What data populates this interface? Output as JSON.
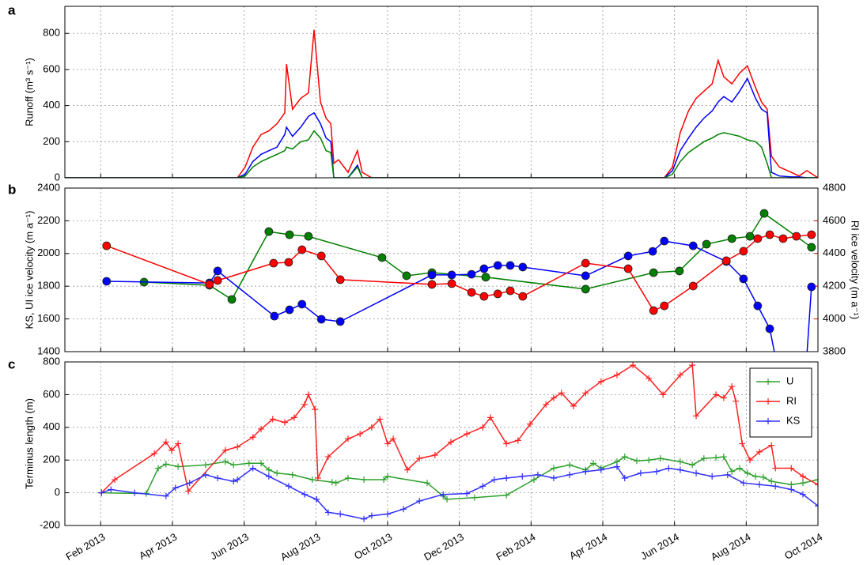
{
  "chart_data": [
    {
      "type": "line",
      "panel_label": "a",
      "ylabel": "Runoff (m³ s⁻¹)",
      "xlim": [
        2013.0,
        2014.75
      ],
      "xticks": [
        2013.0833,
        2013.25,
        2013.4167,
        2013.5833,
        2013.75,
        2013.9167,
        2014.0833,
        2014.25,
        2014.4167,
        2014.5833,
        2014.75
      ],
      "ylim": [
        0,
        950
      ],
      "yticks": [
        0,
        200,
        400,
        600,
        800
      ],
      "grid": true,
      "x": [
        2013.0,
        2013.401,
        2013.419,
        2013.437,
        2013.456,
        2013.474,
        2013.493,
        2013.511,
        2013.515,
        2013.529,
        2013.548,
        2013.566,
        2013.579,
        2013.594,
        2013.607,
        2013.618,
        2013.625,
        2013.636,
        2013.658,
        2013.68,
        2013.691,
        2013.713,
        2014.393,
        2014.412,
        2014.43,
        2014.449,
        2014.467,
        2014.485,
        2014.504,
        2014.518,
        2014.531,
        2014.55,
        2014.568,
        2014.586,
        2014.605,
        2014.619,
        2014.632,
        2014.642,
        2014.66,
        2014.688,
        2014.706,
        2014.724,
        2014.75
      ],
      "series": [
        {
          "color": "#ff0000",
          "values": [
            0,
            0,
            60,
            170,
            240,
            260,
            300,
            360,
            630,
            380,
            440,
            470,
            820,
            420,
            330,
            300,
            80,
            100,
            30,
            150,
            30,
            0,
            0,
            60,
            250,
            370,
            440,
            480,
            520,
            650,
            560,
            520,
            580,
            620,
            500,
            420,
            380,
            120,
            60,
            30,
            10,
            40,
            0
          ]
        },
        {
          "color": "#0000ff",
          "values": [
            0,
            0,
            20,
            90,
            130,
            150,
            170,
            240,
            280,
            230,
            280,
            340,
            360,
            300,
            220,
            200,
            0,
            0,
            0,
            70,
            0,
            0,
            0,
            40,
            150,
            220,
            280,
            330,
            370,
            420,
            450,
            420,
            480,
            550,
            440,
            380,
            360,
            30,
            10,
            5,
            5,
            0,
            0
          ]
        },
        {
          "color": "#008000",
          "values": [
            0,
            0,
            10,
            60,
            90,
            110,
            130,
            150,
            170,
            160,
            200,
            210,
            260,
            220,
            150,
            140,
            0,
            0,
            0,
            60,
            0,
            0,
            0,
            20,
            90,
            140,
            170,
            200,
            220,
            240,
            250,
            240,
            230,
            210,
            200,
            170,
            80,
            0,
            0,
            0,
            0,
            0,
            0
          ]
        }
      ]
    },
    {
      "type": "line",
      "panel_label": "b",
      "ylabel": "KS, UI ice velocity (m a⁻¹)",
      "y2label": "RI ice velocity (m a⁻¹)",
      "y2color": "#ff0000",
      "xlim": [
        2013.0,
        2014.75
      ],
      "xticks": [
        2013.0833,
        2013.25,
        2013.4167,
        2013.5833,
        2013.75,
        2013.9167,
        2014.0833,
        2014.25,
        2014.4167,
        2014.5833,
        2014.75
      ],
      "ylim": [
        1400,
        2400
      ],
      "yticks": [
        1400,
        1600,
        1800,
        2000,
        2200,
        2400
      ],
      "y2lim": [
        3800,
        4800
      ],
      "y2ticks": [
        3800,
        4000,
        4200,
        4400,
        4600,
        4800
      ],
      "grid": true,
      "marker": "o",
      "series": [
        {
          "color": "#008000",
          "x": [
            2013.184,
            2013.336,
            2013.388,
            2013.474,
            2013.522,
            2013.566,
            2013.737,
            2013.794,
            2013.853,
            2013.978,
            2014.21,
            2014.368,
            2014.428,
            2014.491,
            2014.55,
            2014.592,
            2014.625,
            2014.735
          ],
          "values": [
            1825,
            1806,
            1719,
            2134,
            2115,
            2105,
            1975,
            1864,
            1883,
            1855,
            1782,
            1883,
            1893,
            2057,
            2091,
            2105,
            2245,
            2038
          ]
        },
        {
          "color": "#0000ff",
          "x": [
            2013.097,
            2013.336,
            2013.355,
            2013.487,
            2013.522,
            2013.551,
            2013.596,
            2013.64,
            2013.853,
            2013.899,
            2013.945,
            2013.974,
            2014.006,
            2014.035,
            2014.064,
            2014.21,
            2014.309,
            2014.366,
            2014.393,
            2014.46,
            2014.537,
            2014.577,
            2014.61,
            2014.638,
            2014.66,
            2014.721,
            2014.735
          ],
          "values": [
            1830,
            1820,
            1893,
            1617,
            1656,
            1690,
            1598,
            1584,
            1869,
            1869,
            1873,
            1907,
            1927,
            1927,
            1917,
            1864,
            1985,
            2013,
            2076,
            2047,
            1951,
            1845,
            1680,
            1540,
            1250,
            1250,
            1796
          ]
        },
        {
          "color": "#ff0000",
          "axis": "y2",
          "x": [
            2013.097,
            2013.336,
            2013.355,
            2013.485,
            2013.52,
            2013.551,
            2013.596,
            2013.64,
            2013.853,
            2013.899,
            2013.945,
            2013.974,
            2014.006,
            2014.035,
            2014.064,
            2014.21,
            2014.309,
            2014.368,
            2014.393,
            2014.46,
            2014.537,
            2014.577,
            2014.61,
            2014.638,
            2014.669,
            2014.7,
            2014.735
          ],
          "values": [
            4447,
            4211,
            4235,
            4341,
            4346,
            4423,
            4385,
            4240,
            4211,
            4216,
            4162,
            4138,
            4153,
            4172,
            4138,
            4341,
            4307,
            4051,
            4080,
            4201,
            4356,
            4414,
            4491,
            4515,
            4491,
            4505,
            4515
          ]
        }
      ]
    },
    {
      "type": "line",
      "panel_label": "c",
      "ylabel": "Terminus length (m)",
      "xlim": [
        2013.0,
        2014.75
      ],
      "xticks": [
        {
          "value": 2013.0833,
          "label": "Feb 2013"
        },
        {
          "value": 2013.25,
          "label": "Apr 2013"
        },
        {
          "value": 2013.4167,
          "label": "Jun 2013"
        },
        {
          "value": 2013.5833,
          "label": "Aug 2013"
        },
        {
          "value": 2013.75,
          "label": "Oct 2013"
        },
        {
          "value": 2013.9167,
          "label": "Dec 2013"
        },
        {
          "value": 2014.0833,
          "label": "Feb 2014"
        },
        {
          "value": 2014.25,
          "label": "Apr 2014"
        },
        {
          "value": 2014.4167,
          "label": "Jun 2014"
        },
        {
          "value": 2014.5833,
          "label": "Aug 2014"
        },
        {
          "value": 2014.75,
          "label": "Oct 2014"
        }
      ],
      "ylim": [
        -200,
        800
      ],
      "yticks": [
        -200,
        0,
        200,
        400,
        600,
        800
      ],
      "grid": true,
      "marker": "+",
      "legend": "upper right",
      "series": [
        {
          "name": "U",
          "color": "#2ca02c",
          "x": [
            2013.085,
            2013.189,
            2013.217,
            2013.235,
            2013.263,
            2013.327,
            2013.373,
            2013.392,
            2013.428,
            2013.456,
            2013.474,
            2013.493,
            2013.529,
            2013.575,
            2013.621,
            2013.63,
            2013.658,
            2013.695,
            2013.741,
            2013.75,
            2013.842,
            2013.879,
            2013.888,
            2013.952,
            2014.026,
            2014.09,
            2014.136,
            2014.173,
            2014.21,
            2014.228,
            2014.246,
            2014.283,
            2014.301,
            2014.329,
            2014.357,
            2014.384,
            2014.43,
            2014.458,
            2014.485,
            2014.513,
            2014.531,
            2014.55,
            2014.568,
            2014.586,
            2014.605,
            2014.623,
            2014.642,
            2014.688,
            2014.715,
            2014.75
          ],
          "values": [
            0,
            -5,
            150,
            175,
            160,
            170,
            190,
            170,
            180,
            180,
            140,
            120,
            110,
            80,
            65,
            60,
            90,
            80,
            80,
            100,
            60,
            -20,
            -40,
            -30,
            -15,
            80,
            150,
            170,
            140,
            180,
            150,
            190,
            220,
            195,
            200,
            210,
            190,
            170,
            210,
            215,
            220,
            130,
            150,
            120,
            100,
            95,
            70,
            50,
            60,
            80
          ]
        },
        {
          "name": "RI",
          "color": "#ff2020",
          "x": [
            2013.085,
            2013.116,
            2013.208,
            2013.235,
            2013.248,
            2013.263,
            2013.287,
            2013.373,
            2013.401,
            2013.437,
            2013.456,
            2013.483,
            2013.511,
            2013.533,
            2013.557,
            2013.566,
            2013.581,
            2013.588,
            2013.612,
            2013.658,
            2013.686,
            2013.713,
            2013.732,
            2013.75,
            2013.763,
            2013.796,
            2013.824,
            2013.86,
            2013.897,
            2013.934,
            2013.971,
            2013.989,
            2014.026,
            2014.053,
            2014.081,
            2014.118,
            2014.136,
            2014.154,
            2014.182,
            2014.21,
            2014.246,
            2014.283,
            2014.32,
            2014.357,
            2014.39,
            2014.43,
            2014.458,
            2014.467,
            2014.513,
            2014.531,
            2014.55,
            2014.559,
            2014.574,
            2014.592,
            2014.614,
            2014.642,
            2014.651,
            2014.688,
            2014.715,
            2014.75
          ],
          "values": [
            0,
            80,
            240,
            310,
            260,
            300,
            10,
            260,
            280,
            340,
            390,
            450,
            430,
            460,
            540,
            600,
            510,
            90,
            220,
            330,
            360,
            400,
            450,
            300,
            330,
            140,
            210,
            230,
            310,
            360,
            400,
            460,
            300,
            320,
            420,
            540,
            580,
            610,
            530,
            610,
            680,
            720,
            780,
            700,
            600,
            720,
            780,
            470,
            600,
            580,
            650,
            560,
            300,
            200,
            250,
            290,
            150,
            150,
            100,
            50
          ]
        },
        {
          "name": "KS",
          "color": "#3030ff",
          "x": [
            2013.085,
            2013.107,
            2013.162,
            2013.235,
            2013.257,
            2013.29,
            2013.327,
            2013.355,
            2013.392,
            2013.401,
            2013.437,
            2013.474,
            2013.52,
            2013.557,
            2013.585,
            2013.612,
            2013.64,
            2013.695,
            2013.713,
            2013.75,
            2013.787,
            2013.824,
            2013.879,
            2013.934,
            2013.971,
            2013.998,
            2014.026,
            2014.063,
            2014.099,
            2014.136,
            2014.173,
            2014.21,
            2014.246,
            2014.283,
            2014.301,
            2014.338,
            2014.375,
            2014.403,
            2014.43,
            2014.467,
            2014.504,
            2014.54,
            2014.577,
            2014.614,
            2014.651,
            2014.688,
            2014.715,
            2014.75
          ],
          "values": [
            0,
            20,
            0,
            -20,
            30,
            60,
            110,
            90,
            70,
            80,
            150,
            100,
            40,
            -10,
            -40,
            -120,
            -130,
            -160,
            -140,
            -130,
            -100,
            -50,
            -10,
            -5,
            40,
            80,
            90,
            100,
            110,
            90,
            110,
            130,
            140,
            160,
            90,
            120,
            130,
            150,
            140,
            120,
            100,
            110,
            60,
            50,
            40,
            20,
            -10,
            -80
          ]
        }
      ]
    }
  ]
}
